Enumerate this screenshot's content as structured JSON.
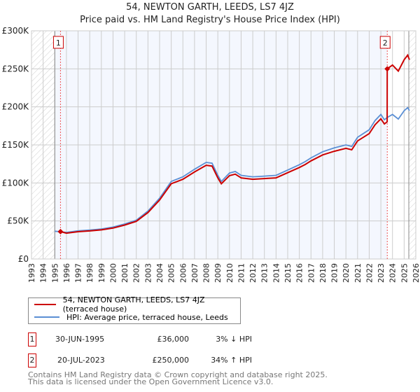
{
  "title_line1": "54, NEWTON GARTH, LEEDS, LS7 4JZ",
  "title_line2": "Price paid vs. HM Land Registry's House Price Index (HPI)",
  "chart_data": {
    "type": "line",
    "xlim": [
      1993,
      2026
    ],
    "ylim": [
      0,
      300000
    ],
    "x_ticks": [
      "1993",
      "1994",
      "1995",
      "1996",
      "1997",
      "1998",
      "1999",
      "2000",
      "2001",
      "2002",
      "2003",
      "2004",
      "2005",
      "2006",
      "2007",
      "2008",
      "2009",
      "2010",
      "2011",
      "2012",
      "2013",
      "2014",
      "2015",
      "2016",
      "2017",
      "2018",
      "2019",
      "2020",
      "2021",
      "2022",
      "2023",
      "2024",
      "2025",
      "2026"
    ],
    "y_ticks": [
      {
        "v": 0,
        "label": "£0"
      },
      {
        "v": 50000,
        "label": "£50K"
      },
      {
        "v": 100000,
        "label": "£100K"
      },
      {
        "v": 150000,
        "label": "£150K"
      },
      {
        "v": 200000,
        "label": "£200K"
      },
      {
        "v": 250000,
        "label": "£250K"
      },
      {
        "v": 300000,
        "label": "£300K"
      }
    ],
    "grid": true,
    "hatched_ranges": [
      [
        1993,
        1995
      ],
      [
        2025.4,
        2026
      ]
    ],
    "series": [
      {
        "name": "54, NEWTON GARTH, LEEDS, LS7 4JZ (terraced house)",
        "color": "#cc0000",
        "points": [
          [
            1995.49,
            36000
          ],
          [
            1996,
            34000
          ],
          [
            1997,
            35900
          ],
          [
            1998,
            36900
          ],
          [
            1999,
            38300
          ],
          [
            2000,
            40700
          ],
          [
            2001,
            44600
          ],
          [
            2002,
            49500
          ],
          [
            2003,
            61100
          ],
          [
            2004,
            77600
          ],
          [
            2005,
            98900
          ],
          [
            2006,
            104800
          ],
          [
            2007,
            114500
          ],
          [
            2008,
            123200
          ],
          [
            2008.5,
            122200
          ],
          [
            2009,
            106700
          ],
          [
            2009.3,
            98900
          ],
          [
            2010,
            109600
          ],
          [
            2010.5,
            111500
          ],
          [
            2011,
            106700
          ],
          [
            2012,
            104800
          ],
          [
            2013,
            105700
          ],
          [
            2014,
            106700
          ],
          [
            2015,
            113500
          ],
          [
            2016,
            120300
          ],
          [
            2016.5,
            124200
          ],
          [
            2017,
            129000
          ],
          [
            2018,
            136800
          ],
          [
            2019,
            141600
          ],
          [
            2020,
            145500
          ],
          [
            2020.5,
            143600
          ],
          [
            2021,
            155200
          ],
          [
            2022,
            164900
          ],
          [
            2022.5,
            176500
          ],
          [
            2023,
            184300
          ],
          [
            2023.3,
            177500
          ],
          [
            2023.54,
            180400
          ],
          [
            2023.55,
            250000
          ],
          [
            2024,
            255000
          ],
          [
            2024.5,
            247000
          ],
          [
            2025,
            262000
          ],
          [
            2025.3,
            268000
          ],
          [
            2025.45,
            262000
          ]
        ]
      },
      {
        "name": "HPI: Average price, terraced house, Leeds",
        "color": "#5b8fd4",
        "points": [
          [
            1995,
            36500
          ],
          [
            1996,
            35000
          ],
          [
            1997,
            37000
          ],
          [
            1998,
            38000
          ],
          [
            1999,
            39500
          ],
          [
            2000,
            42000
          ],
          [
            2001,
            46000
          ],
          [
            2002,
            51000
          ],
          [
            2003,
            63000
          ],
          [
            2004,
            80000
          ],
          [
            2005,
            102000
          ],
          [
            2006,
            108000
          ],
          [
            2007,
            118000
          ],
          [
            2008,
            127000
          ],
          [
            2008.5,
            126000
          ],
          [
            2009,
            110000
          ],
          [
            2009.3,
            102000
          ],
          [
            2010,
            113000
          ],
          [
            2010.5,
            115000
          ],
          [
            2011,
            110000
          ],
          [
            2012,
            108000
          ],
          [
            2013,
            109000
          ],
          [
            2014,
            110000
          ],
          [
            2015,
            117000
          ],
          [
            2016,
            124000
          ],
          [
            2016.5,
            128000
          ],
          [
            2017,
            133000
          ],
          [
            2018,
            141000
          ],
          [
            2019,
            146000
          ],
          [
            2020,
            150000
          ],
          [
            2020.5,
            148000
          ],
          [
            2021,
            160000
          ],
          [
            2022,
            170000
          ],
          [
            2022.5,
            182000
          ],
          [
            2023,
            190000
          ],
          [
            2023.3,
            183000
          ],
          [
            2023.55,
            186000
          ],
          [
            2024,
            190000
          ],
          [
            2024.5,
            184000
          ],
          [
            2025,
            195000
          ],
          [
            2025.3,
            199000
          ],
          [
            2025.45,
            195000
          ]
        ]
      }
    ],
    "sales": [
      {
        "id": "1",
        "x": 1995.49,
        "value": 36000
      },
      {
        "id": "2",
        "x": 2023.55,
        "value": 250000
      }
    ]
  },
  "legend": {
    "property_label": "54, NEWTON GARTH, LEEDS, LS7 4JZ (terraced house)",
    "hpi_label": "HPI: Average price, terraced house, Leeds"
  },
  "transactions": [
    {
      "id": "1",
      "date": "30-JUN-1995",
      "price": "£36,000",
      "hpi": "3% ↓ HPI"
    },
    {
      "id": "2",
      "date": "20-JUL-2023",
      "price": "£250,000",
      "hpi": "34% ↑ HPI"
    }
  ],
  "footer_line1": "Contains HM Land Registry data © Crown copyright and database right 2025.",
  "footer_line2": "This data is licensed under the Open Government Licence v3.0."
}
